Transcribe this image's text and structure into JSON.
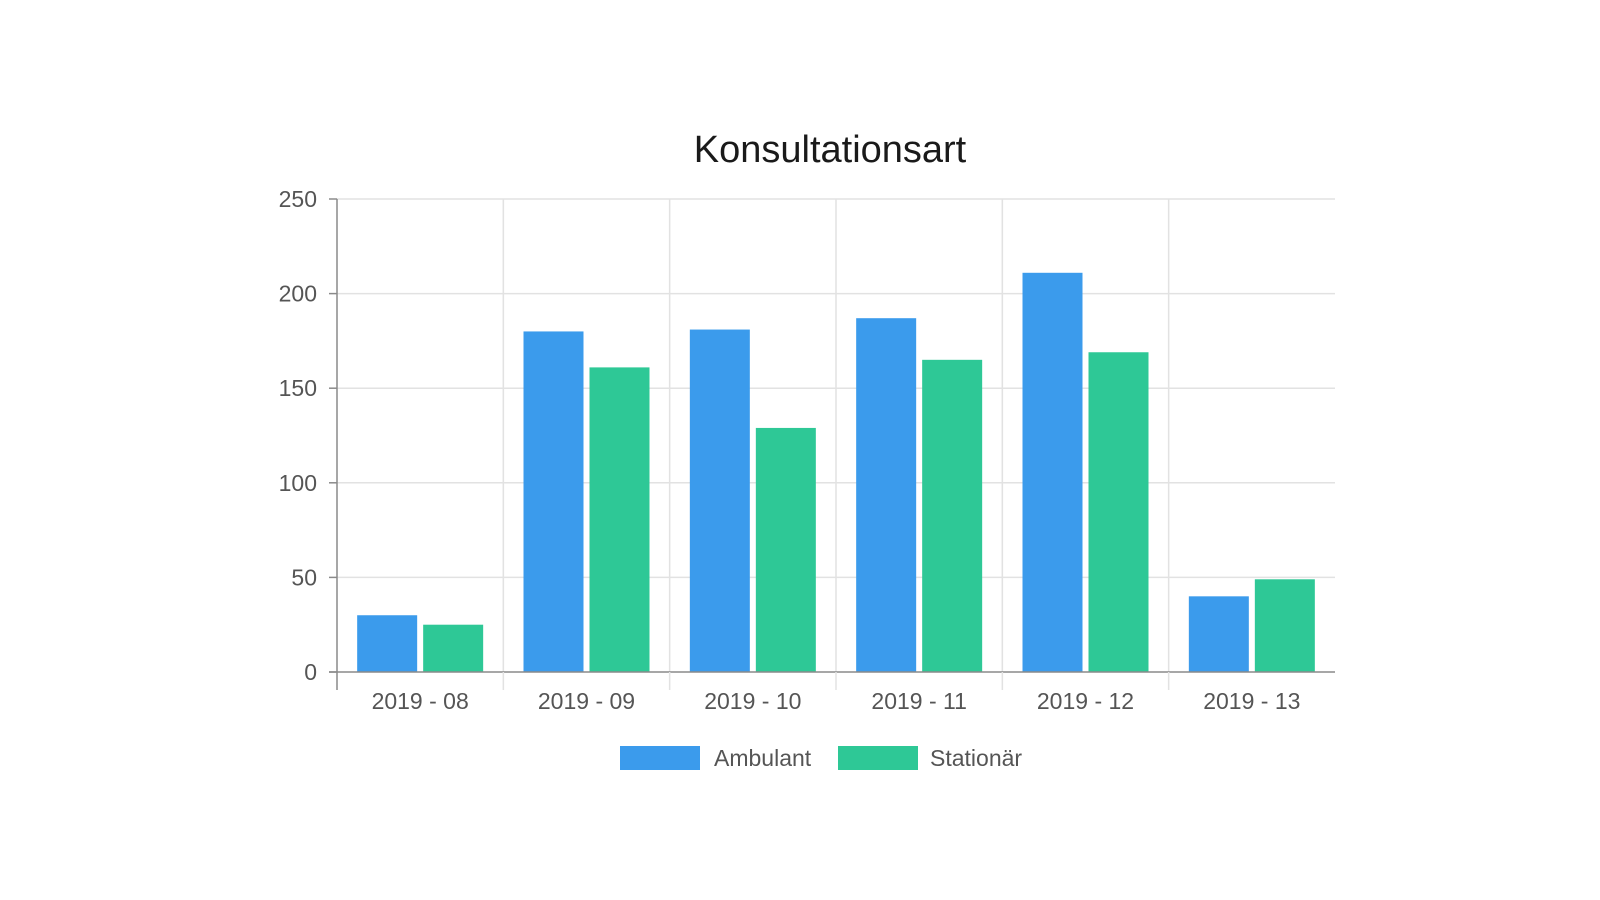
{
  "chart_data": {
    "type": "bar",
    "title": "Konsultationsart",
    "xlabel": "",
    "ylabel": "",
    "categories": [
      "2019 - 08",
      "2019 - 09",
      "2019 - 10",
      "2019 - 11",
      "2019 - 12",
      "2019 - 13"
    ],
    "series": [
      {
        "name": "Ambulant",
        "color": "#3b9bec",
        "values": [
          30,
          180,
          181,
          187,
          211,
          40
        ]
      },
      {
        "name": "Stationär",
        "color": "#2ec896",
        "values": [
          25,
          161,
          129,
          165,
          169,
          49
        ]
      }
    ],
    "ylim": [
      0,
      250
    ],
    "yticks": [
      0,
      50,
      100,
      150,
      200,
      250
    ],
    "grid": true,
    "legend": "bottom-center"
  }
}
